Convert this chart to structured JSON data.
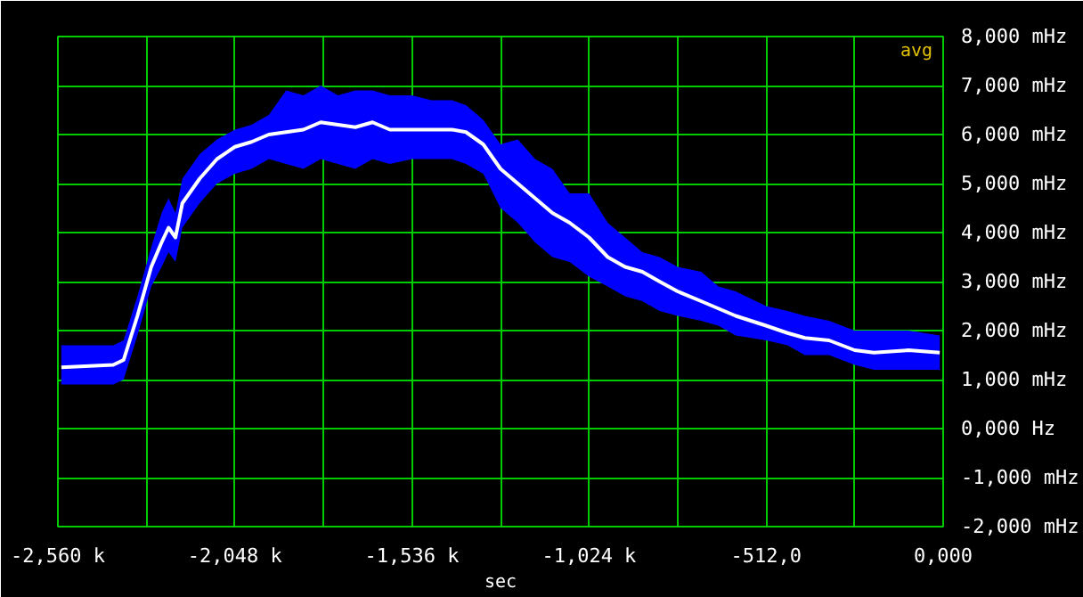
{
  "chart_data": {
    "type": "line",
    "xlabel": "sec",
    "annotations": [
      "avg"
    ],
    "x": [
      -2550,
      -2400,
      -2370,
      -2330,
      -2290,
      -2260,
      -2240,
      -2220,
      -2200,
      -2150,
      -2100,
      -2048,
      -2000,
      -1950,
      -1900,
      -1850,
      -1800,
      -1750,
      -1700,
      -1650,
      -1600,
      -1536,
      -1480,
      -1420,
      -1380,
      -1330,
      -1280,
      -1230,
      -1180,
      -1130,
      -1080,
      -1024,
      -970,
      -920,
      -870,
      -820,
      -768,
      -700,
      -650,
      -600,
      -512,
      -450,
      -400,
      -330,
      -256,
      -200,
      -100,
      -10
    ],
    "series": [
      {
        "color": "#0000ff",
        "values": [
          null,
          null,
          null,
          null,
          null,
          null,
          null,
          null,
          null,
          null,
          null,
          null,
          null,
          null,
          null,
          null,
          null,
          null,
          null,
          null,
          null,
          null,
          null,
          null,
          null,
          null,
          null,
          null,
          null,
          null,
          null,
          null,
          null,
          null,
          null,
          null,
          null,
          null,
          null,
          null,
          null,
          null,
          null,
          null,
          null,
          null,
          null,
          null
        ],
        "lower": [
          0.9,
          0.9,
          1.0,
          1.9,
          2.9,
          3.3,
          3.6,
          3.4,
          4.1,
          4.6,
          5.0,
          5.2,
          5.3,
          5.5,
          5.4,
          5.3,
          5.5,
          5.4,
          5.3,
          5.5,
          5.4,
          5.5,
          5.5,
          5.5,
          5.4,
          5.2,
          4.5,
          4.2,
          3.8,
          3.5,
          3.4,
          3.1,
          2.9,
          2.7,
          2.6,
          2.4,
          2.3,
          2.2,
          2.1,
          1.9,
          1.8,
          1.7,
          1.5,
          1.5,
          1.3,
          1.2,
          1.2,
          1.2
        ],
        "upper": [
          1.7,
          1.7,
          1.8,
          2.7,
          3.7,
          4.4,
          4.7,
          4.4,
          5.1,
          5.6,
          5.9,
          6.1,
          6.2,
          6.4,
          6.9,
          6.8,
          7.0,
          6.8,
          6.9,
          6.9,
          6.8,
          6.8,
          6.7,
          6.7,
          6.6,
          6.3,
          5.8,
          5.9,
          5.5,
          5.3,
          4.8,
          4.8,
          4.2,
          3.9,
          3.6,
          3.5,
          3.3,
          3.2,
          2.9,
          2.8,
          2.5,
          2.4,
          2.3,
          2.2,
          2.0,
          2.0,
          2.0,
          1.9
        ]
      },
      {
        "color": "#ffffff",
        "values": [
          1.25,
          1.3,
          1.4,
          2.3,
          3.3,
          3.8,
          4.1,
          3.9,
          4.6,
          5.1,
          5.5,
          5.75,
          5.85,
          6.0,
          6.05,
          6.1,
          6.25,
          6.2,
          6.15,
          6.25,
          6.1,
          6.1,
          6.1,
          6.1,
          6.05,
          5.8,
          5.3,
          5.0,
          4.7,
          4.4,
          4.2,
          3.9,
          3.5,
          3.3,
          3.2,
          3.0,
          2.8,
          2.6,
          2.45,
          2.3,
          2.1,
          1.95,
          1.85,
          1.8,
          1.6,
          1.55,
          1.6,
          1.55
        ]
      }
    ],
    "xlim": [
      -2560,
      0
    ],
    "xticks": [
      {
        "value": -2560,
        "label": "-2,560 k"
      },
      {
        "value": -2304,
        "label": null
      },
      {
        "value": -2048,
        "label": "-2,048 k"
      },
      {
        "value": -1792,
        "label": null
      },
      {
        "value": -1536,
        "label": "-1,536 k"
      },
      {
        "value": -1280,
        "label": null
      },
      {
        "value": -1024,
        "label": "-1,024 k"
      },
      {
        "value": -768,
        "label": null
      },
      {
        "value": -512,
        "label": "-512,0"
      },
      {
        "value": -256,
        "label": null
      },
      {
        "value": 0,
        "label": "0,000"
      }
    ],
    "ylim": [
      -2,
      8
    ],
    "yticks": [
      {
        "value": -2,
        "label": "-2,000 mHz"
      },
      {
        "value": -1,
        "label": "-1,000 mHz"
      },
      {
        "value": 0,
        "label": "0,000  Hz"
      },
      {
        "value": 1,
        "label": "1,000 mHz"
      },
      {
        "value": 2,
        "label": "2,000 mHz"
      },
      {
        "value": 3,
        "label": "3,000 mHz"
      },
      {
        "value": 4,
        "label": "4,000 mHz"
      },
      {
        "value": 5,
        "label": "5,000 mHz"
      },
      {
        "value": 6,
        "label": "6,000 mHz"
      },
      {
        "value": 7,
        "label": "7,000 mHz"
      },
      {
        "value": 8,
        "label": "8,000 mHz"
      }
    ],
    "grid": true,
    "line_style": "solid"
  }
}
